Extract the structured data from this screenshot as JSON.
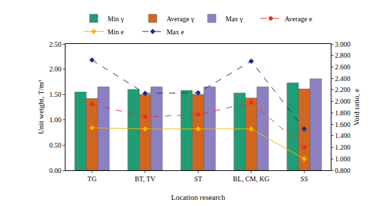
{
  "chart_data": {
    "type": "bar",
    "categories": [
      "TG",
      "BT, TV",
      "ST",
      "BL, CM, KG",
      "SS"
    ],
    "x_label": "Location research",
    "y_label": "Unit weight, T/m³",
    "y2_label": "Void ratio, e",
    "ylim": [
      0,
      2.5
    ],
    "yticks": [
      {
        "value": 0,
        "label": "0.00"
      },
      {
        "value": 0.5,
        "label": "0.50"
      },
      {
        "value": 1,
        "label": "1.00"
      },
      {
        "value": 1.5,
        "label": "1.50"
      },
      {
        "value": 2,
        "label": "2.00"
      },
      {
        "value": 2.5,
        "label": "2.50"
      }
    ],
    "y2lim": [
      0.8,
      3.0
    ],
    "y2ticks": [
      {
        "value": 0.8,
        "label": "0.800"
      },
      {
        "value": 1.0,
        "label": "1.000"
      },
      {
        "value": 1.2,
        "label": "1.200"
      },
      {
        "value": 1.4,
        "label": "1.400"
      },
      {
        "value": 1.6,
        "label": "1.600"
      },
      {
        "value": 1.8,
        "label": "1.800"
      },
      {
        "value": 2.0,
        "label": "2.000"
      },
      {
        "value": 2.2,
        "label": "2.200"
      },
      {
        "value": 2.4,
        "label": "2.400"
      },
      {
        "value": 2.6,
        "label": "2.600"
      },
      {
        "value": 2.8,
        "label": "2.800"
      },
      {
        "value": 3.0,
        "label": "3.000"
      }
    ],
    "grid": false,
    "legend": "top",
    "series": [
      {
        "name": "Min γ",
        "type": "bar",
        "color": "#1f9e74",
        "values": [
          1.55,
          1.6,
          1.58,
          1.53,
          1.73
        ]
      },
      {
        "name": "Average γ",
        "type": "bar",
        "color": "#d2651f",
        "values": [
          1.42,
          1.5,
          1.5,
          1.43,
          1.61
        ]
      },
      {
        "name": "Max γ",
        "type": "bar",
        "color": "#8b80c2",
        "values": [
          1.65,
          1.65,
          1.65,
          1.65,
          1.81
        ]
      },
      {
        "name": "Average e",
        "type": "line",
        "axis": "y2",
        "color": "#e8301c",
        "marker": "circle",
        "line_style": "dash",
        "values": [
          1.95,
          1.73,
          1.77,
          1.98,
          1.2
        ]
      },
      {
        "name": "Min e",
        "type": "line",
        "axis": "y2",
        "color": "#f2b705",
        "marker": "diamond",
        "line_style": "solid",
        "values": [
          1.54,
          1.52,
          1.52,
          1.52,
          1.0
        ]
      },
      {
        "name": "Max e",
        "type": "line",
        "axis": "y2",
        "color": "#1b2a8a",
        "marker": "diamond",
        "line_style": "dash",
        "values": [
          2.72,
          2.14,
          2.15,
          2.7,
          1.52
        ]
      }
    ]
  }
}
